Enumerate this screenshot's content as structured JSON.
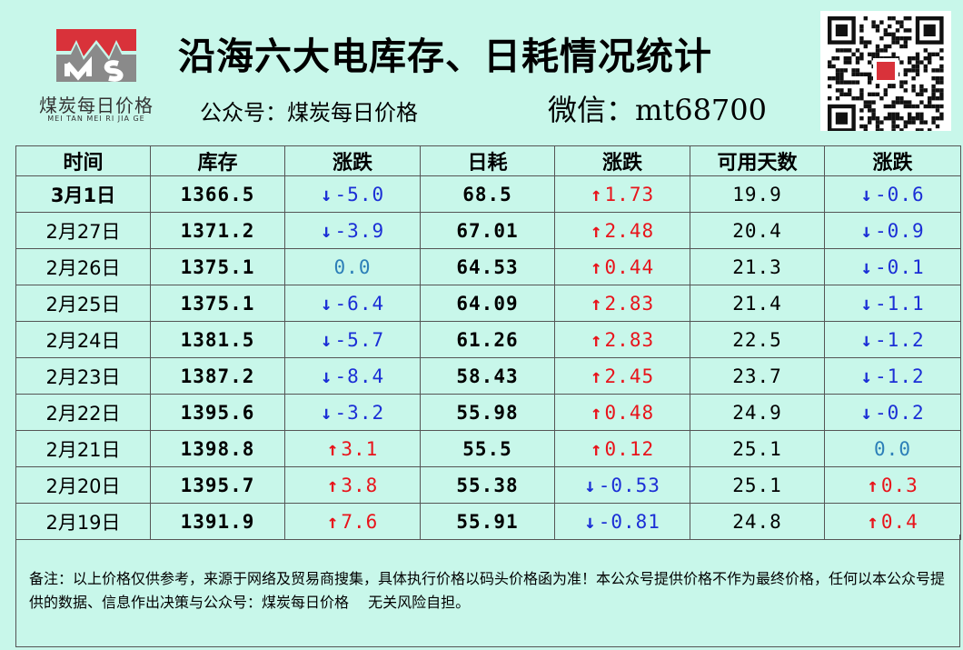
{
  "header": {
    "logo_text": "煤炭每日价格",
    "logo_sub": "MEI TAN MEI RI JIA GE",
    "title": "沿海六大电库存、日耗情况统计",
    "subtitle": "公众号：煤炭每日价格",
    "wechat": "微信：mt68700"
  },
  "table": {
    "columns": [
      "时间",
      "库存",
      "涨跌",
      "日耗",
      "涨跌",
      "可用天数",
      "涨跌"
    ],
    "rows": [
      {
        "date": "3月1日",
        "inv": "1366.5",
        "inv_chg": "-5.0",
        "inv_dir": "down",
        "cons": "68.5",
        "cons_chg": "1.73",
        "cons_dir": "up",
        "days": "19.9",
        "days_chg": "-0.6",
        "days_dir": "down"
      },
      {
        "date": "2月27日",
        "inv": "1371.2",
        "inv_chg": "-3.9",
        "inv_dir": "down",
        "cons": "67.01",
        "cons_chg": "2.48",
        "cons_dir": "up",
        "days": "20.4",
        "days_chg": "-0.9",
        "days_dir": "down"
      },
      {
        "date": "2月26日",
        "inv": "1375.1",
        "inv_chg": "0.0",
        "inv_dir": "flat",
        "cons": "64.53",
        "cons_chg": "0.44",
        "cons_dir": "up",
        "days": "21.3",
        "days_chg": "-0.1",
        "days_dir": "down"
      },
      {
        "date": "2月25日",
        "inv": "1375.1",
        "inv_chg": "-6.4",
        "inv_dir": "down",
        "cons": "64.09",
        "cons_chg": "2.83",
        "cons_dir": "up",
        "days": "21.4",
        "days_chg": "-1.1",
        "days_dir": "down"
      },
      {
        "date": "2月24日",
        "inv": "1381.5",
        "inv_chg": "-5.7",
        "inv_dir": "down",
        "cons": "61.26",
        "cons_chg": "2.83",
        "cons_dir": "up",
        "days": "22.5",
        "days_chg": "-1.2",
        "days_dir": "down"
      },
      {
        "date": "2月23日",
        "inv": "1387.2",
        "inv_chg": "-8.4",
        "inv_dir": "down",
        "cons": "58.43",
        "cons_chg": "2.45",
        "cons_dir": "up",
        "days": "23.7",
        "days_chg": "-1.2",
        "days_dir": "down"
      },
      {
        "date": "2月22日",
        "inv": "1395.6",
        "inv_chg": "-3.2",
        "inv_dir": "down",
        "cons": "55.98",
        "cons_chg": "0.48",
        "cons_dir": "up",
        "days": "24.9",
        "days_chg": "-0.2",
        "days_dir": "down"
      },
      {
        "date": "2月21日",
        "inv": "1398.8",
        "inv_chg": "3.1",
        "inv_dir": "up",
        "cons": "55.5",
        "cons_chg": "0.12",
        "cons_dir": "up",
        "days": "25.1",
        "days_chg": "0.0",
        "days_dir": "flat"
      },
      {
        "date": "2月20日",
        "inv": "1395.7",
        "inv_chg": "3.8",
        "inv_dir": "up",
        "cons": "55.38",
        "cons_chg": "-0.53",
        "cons_dir": "down",
        "days": "25.1",
        "days_chg": "0.3",
        "days_dir": "up"
      },
      {
        "date": "2月19日",
        "inv": "1391.9",
        "inv_chg": "7.6",
        "inv_dir": "up",
        "cons": "55.91",
        "cons_chg": "-0.81",
        "cons_dir": "down",
        "days": "24.8",
        "days_chg": "0.4",
        "days_dir": "up"
      }
    ]
  },
  "note": "备注：以上价格仅供参考，来源于网络及贸易商搜集，具体执行价格以码头价格函为准！本公众号提供价格不作为最终价格，任何以本公众号提供的数据、信息作出决策与公众号：煤炭每日价格　 无关风险自担。",
  "colors": {
    "background": "#c8f7ea",
    "up": "#e8141b",
    "down": "#1b2fd6",
    "flat": "#2c7fb8",
    "logo_red": "#d9323a",
    "logo_gray": "#8a8a8a"
  },
  "icons": {
    "up": "arrow-up-icon",
    "down": "arrow-down-icon",
    "qr": "qr-code-icon"
  }
}
